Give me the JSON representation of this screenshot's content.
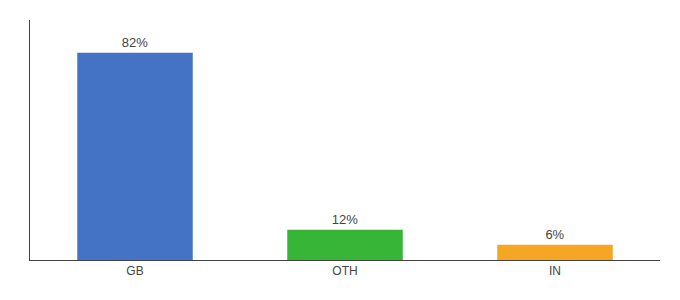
{
  "chart_data": {
    "type": "bar",
    "categories": [
      "GB",
      "OTH",
      "IN"
    ],
    "values": [
      82,
      12,
      6
    ],
    "value_labels": [
      "82%",
      "12%",
      "6%"
    ],
    "colors": [
      "#4472c4",
      "#36b536",
      "#f5a623"
    ],
    "ylim": [
      0,
      95
    ],
    "grid": false,
    "data_labels": true,
    "tick_labels": "x"
  }
}
